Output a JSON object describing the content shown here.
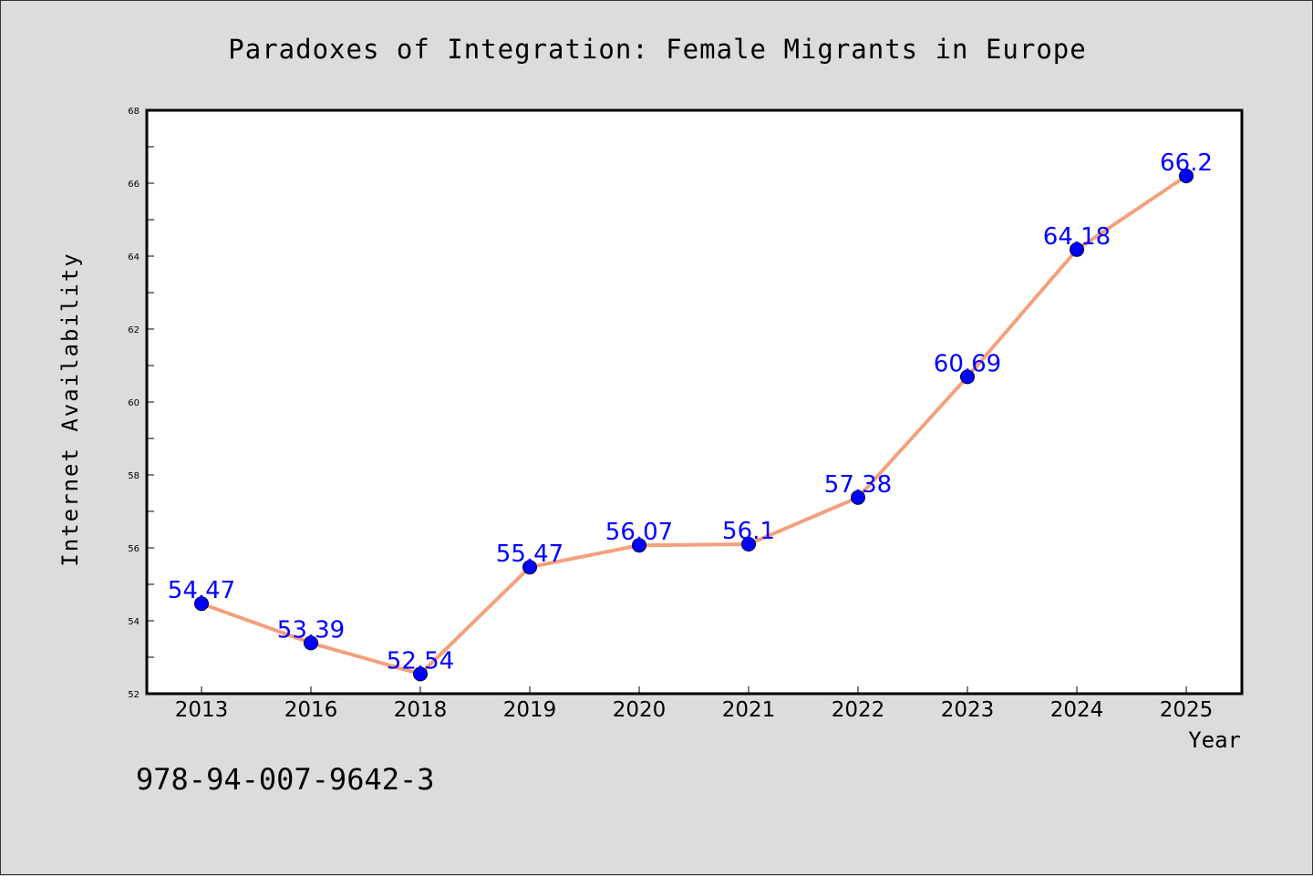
{
  "chart_data": {
    "type": "line",
    "title": "Paradoxes of Integration: Female Migrants in Europe",
    "xlabel": "Year",
    "ylabel": "Internet Availability",
    "categories": [
      "2013",
      "2016",
      "2018",
      "2019",
      "2020",
      "2021",
      "2022",
      "2023",
      "2024",
      "2025"
    ],
    "series": [
      {
        "values": [
          54.47,
          53.39,
          52.54,
          55.47,
          56.07,
          56.1,
          57.38,
          60.69,
          64.18,
          66.2
        ],
        "labels": [
          "54.47",
          "53.39",
          "52.54",
          "55.47",
          "56.07",
          "56.1",
          "57.38",
          "60.69",
          "64.18",
          "66.2"
        ]
      }
    ],
    "ylim": [
      52,
      68
    ],
    "yticks": [
      "52",
      "54",
      "56",
      "58",
      "60",
      "62",
      "64",
      "66",
      "68"
    ],
    "grid": false,
    "legend": "none",
    "colors": {
      "line": "#f4a07c",
      "marker": "#0000ff",
      "marker_edge": "#000033",
      "label": "#0000ff",
      "background": "#dcdcdc",
      "plot_background": "#ffffff"
    }
  },
  "footer": {
    "code": "978-94-007-9642-3"
  }
}
